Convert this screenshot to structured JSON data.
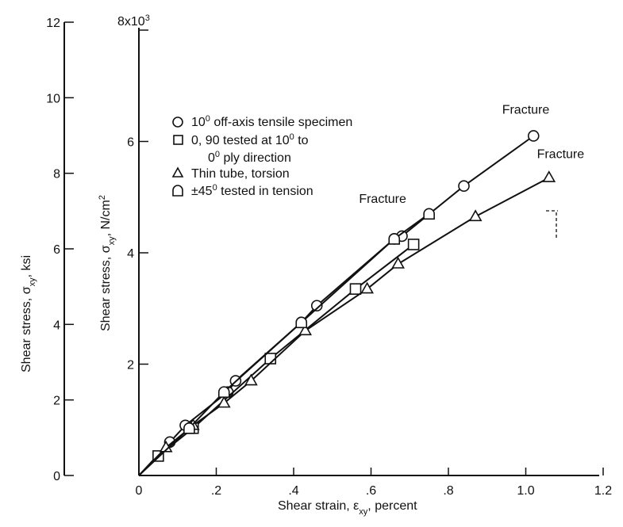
{
  "chart_data": {
    "type": "line",
    "title": "",
    "xlabel": "Shear strain, εxy, percent",
    "ylabel_left": "Shear stress, σxy, ksi",
    "ylabel_inner": "Shear stress, σxy, N/cm²",
    "x_ticks": [
      "0",
      ".2",
      ".4",
      ".6",
      ".8",
      "1.0",
      "1.2"
    ],
    "x_tick_values": [
      0,
      0.2,
      0.4,
      0.6,
      0.8,
      1.0,
      1.2
    ],
    "xlim": [
      0,
      1.2
    ],
    "y_left_ticks": [
      "0",
      "2",
      "4",
      "6",
      "8",
      "10",
      "12"
    ],
    "y_left_tick_values": [
      0,
      2,
      4,
      6,
      8,
      10,
      12
    ],
    "y_left_lim": [
      0,
      12
    ],
    "y_inner_ticks": [
      "2",
      "4",
      "6"
    ],
    "y_inner_tick_values": [
      2,
      4,
      6
    ],
    "y_inner_top_label": "8x10",
    "y_inner_top_exponent": "3",
    "y_inner_lim": [
      0,
      8
    ],
    "legend_position": "top-left",
    "grid": false,
    "series": [
      {
        "name": "10⁰ off-axis tensile specimen",
        "marker": "circle",
        "x": [
          0.08,
          0.12,
          0.23,
          0.25,
          0.42,
          0.46,
          0.66,
          0.68,
          0.84,
          1.02
        ],
        "y": [
          0.6,
          0.9,
          1.5,
          1.7,
          2.75,
          3.05,
          4.25,
          4.3,
          5.2,
          6.1
        ]
      },
      {
        "name": "0, 90 tested at 10⁰ to 0⁰ ply direction",
        "marker": "square",
        "x": [
          0.05,
          0.14,
          0.34,
          0.56,
          0.71
        ],
        "y": [
          0.35,
          0.85,
          2.1,
          3.35,
          4.15
        ]
      },
      {
        "name": "Thin tube, torsion",
        "marker": "triangle",
        "x": [
          0.07,
          0.14,
          0.22,
          0.29,
          0.43,
          0.59,
          0.67,
          0.87,
          1.06
        ],
        "y": [
          0.5,
          0.9,
          1.3,
          1.7,
          2.6,
          3.35,
          3.8,
          4.65,
          5.35
        ]
      },
      {
        "name": "±45⁰ tested in tension",
        "marker": "dshape",
        "x": [
          0.13,
          0.22,
          0.42,
          0.66,
          0.75
        ],
        "y": [
          0.85,
          1.5,
          2.75,
          4.25,
          4.7
        ]
      }
    ],
    "annotations": [
      {
        "text": "Fracture",
        "x": 1.0,
        "y": 6.5
      },
      {
        "text": "Fracture",
        "x": 1.09,
        "y": 5.7
      },
      {
        "text": "Fracture",
        "x": 0.63,
        "y": 4.9
      }
    ]
  }
}
